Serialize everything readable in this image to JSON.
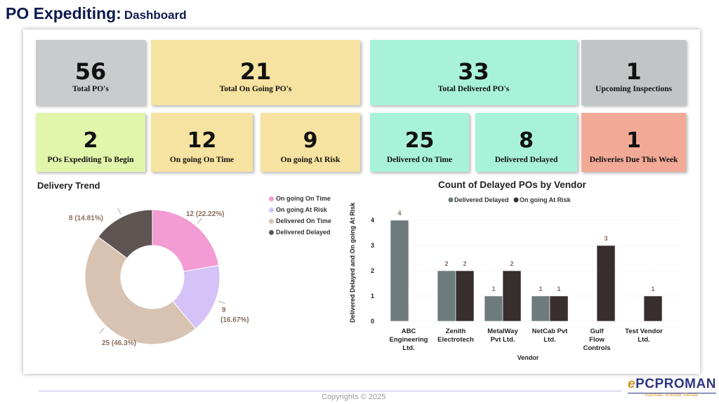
{
  "header": {
    "title": "PO Expediting:",
    "subtitle": "Dashboard"
  },
  "kpis_row1": [
    {
      "value": "56",
      "label": "Total PO's",
      "color": "#c9cccc"
    },
    {
      "value": "21",
      "label": "Total On Going PO's",
      "color": "#f7e3a1"
    },
    {
      "value": "33",
      "label": "Total Delivered PO's",
      "color": "#a9f2da"
    },
    {
      "value": "1",
      "label": "Upcoming Inspections",
      "color": "#c2c5c5"
    }
  ],
  "kpis_row2": [
    {
      "value": "2",
      "label": "POs Expediting To Begin",
      "color": "#e2f6ab"
    },
    {
      "value": "12",
      "label": "On going On Time",
      "color": "#f7e3a1"
    },
    {
      "value": "9",
      "label": "On going At Risk",
      "color": "#f7e3a1"
    },
    {
      "value": "25",
      "label": "Delivered On Time",
      "color": "#a9f2da"
    },
    {
      "value": "8",
      "label": "Delivered Delayed",
      "color": "#a9f2da"
    },
    {
      "value": "1",
      "label": "Deliveries Due This Week",
      "color": "#f2a996"
    }
  ],
  "chart_data": [
    {
      "type": "pie",
      "donut": true,
      "title": "Delivery Trend",
      "categories": [
        "On going On Time",
        "On going At Risk",
        "Delivered On Time",
        "Delivered Delayed"
      ],
      "values": [
        12,
        9,
        25,
        8
      ],
      "labels": [
        "12 (22.22%)",
        "9 (16.67%)",
        "25 (46.3%)",
        "8 (14.81%)"
      ],
      "colors": [
        "#f39bd3",
        "#d5c2f7",
        "#d8c3b3",
        "#5e5452"
      ],
      "legend": "top-right"
    },
    {
      "type": "bar",
      "title": "Count of Delayed POs by Vendor",
      "xlabel": "Vendor",
      "ylabel": "Delivered Delayed and On going At Risk",
      "categories": [
        "ABC Engineering Ltd.",
        "Zenith Electrotech",
        "MetalWay Pvt Ltd.",
        "NetCab Pvt Ltd.",
        "Gulf Flow Controls",
        "Test Vendor Ltd."
      ],
      "series": [
        {
          "name": "Delivered Delayed",
          "values": [
            4,
            2,
            1,
            1,
            null,
            null
          ],
          "color": "#6e7b7d"
        },
        {
          "name": "On going At Risk",
          "values": [
            null,
            2,
            2,
            1,
            3,
            1
          ],
          "color": "#372e2d"
        }
      ],
      "ylim": [
        0,
        4
      ],
      "yticks": [
        0,
        1,
        2,
        3,
        4
      ],
      "grid": true,
      "legend": "top"
    }
  ],
  "footer": {
    "copyright": "Copyrights © 2025",
    "logo_text": "PCPROMAN",
    "logo_prefix": "e",
    "tagline": "Automate. Innovate. Elevate."
  }
}
